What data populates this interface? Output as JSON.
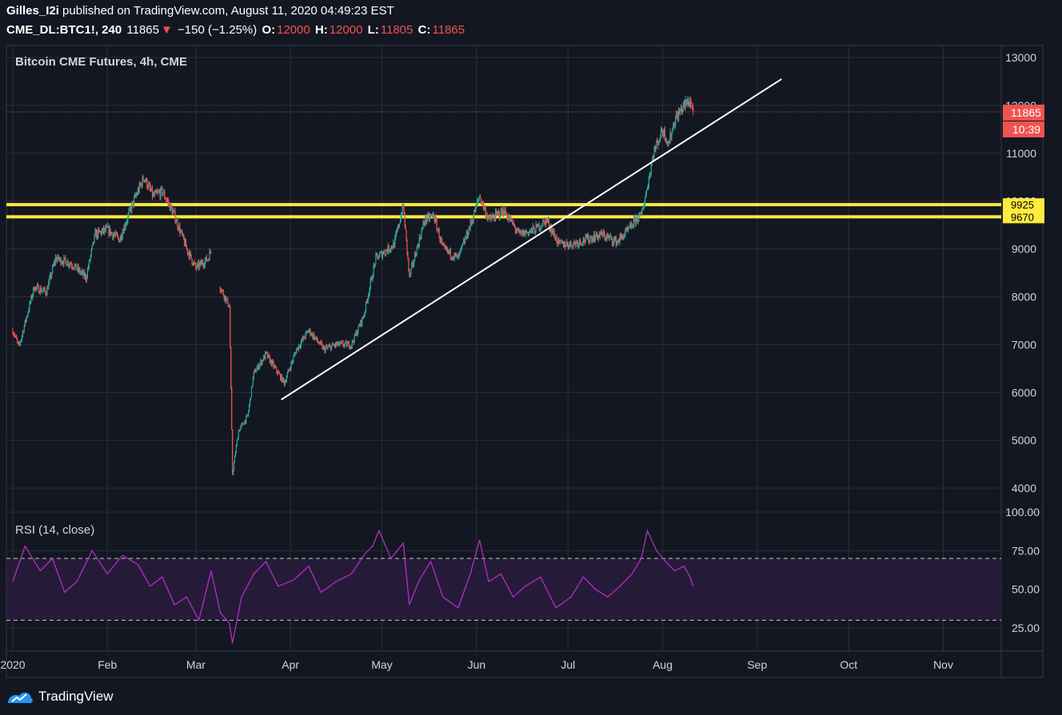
{
  "header": {
    "author": "Gilles_I2i",
    "published_text": "published on TradingView.com, August 11, 2020 04:49:23 EST",
    "symbol": "CME_DL:BTC1!, 240",
    "last": "11865",
    "change": "−150 (−1.25%)",
    "o_label": "O:",
    "o_value": "12000",
    "h_label": "H:",
    "h_value": "12000",
    "l_label": "L:",
    "l_value": "11805",
    "c_label": "C:",
    "c_value": "11865"
  },
  "footer": {
    "brand": "TradingView"
  },
  "colors": {
    "background": "#131722",
    "grid": "#2a2e39",
    "up": "#26a69a",
    "down": "#ef5350",
    "level": "#ffeb3b",
    "trendline": "#ffffff",
    "rsi": "#b02fc2",
    "rsi_band": "#2a1b3d"
  },
  "chart_data": [
    {
      "type": "candlestick",
      "title": "Bitcoin CME Futures, 4h, CME",
      "x_ticks": [
        "2020",
        "Feb",
        "Mar",
        "Apr",
        "May",
        "Jun",
        "Jul",
        "Aug",
        "Sep",
        "Oct",
        "Nov"
      ],
      "x_range": [
        "2020-01-01",
        "2020-11-20"
      ],
      "y_ticks": [
        "13000",
        "12000",
        "11000",
        "10000",
        "9000",
        "8000",
        "7000",
        "6000",
        "5000",
        "4000"
      ],
      "ylim": [
        3500,
        13250
      ],
      "grid": true,
      "last_price": {
        "value": 11865,
        "label": "11865",
        "countdown": "10:39"
      },
      "levels": [
        {
          "value": 9925,
          "label": "9925"
        },
        {
          "value": 9670,
          "label": "9670"
        }
      ],
      "trendline": {
        "from": [
          "2020-03-29",
          5850
        ],
        "to": [
          "2020-09-09",
          12550
        ]
      },
      "price_path": [
        [
          "2020-01-01",
          7300
        ],
        [
          "2020-01-03",
          6950
        ],
        [
          "2020-01-08",
          8200
        ],
        [
          "2020-01-12",
          8100
        ],
        [
          "2020-01-15",
          8800
        ],
        [
          "2020-01-20",
          8700
        ],
        [
          "2020-01-25",
          8400
        ],
        [
          "2020-01-28",
          9300
        ],
        [
          "2020-02-01",
          9400
        ],
        [
          "2020-02-05",
          9200
        ],
        [
          "2020-02-09",
          9900
        ],
        [
          "2020-02-13",
          10500
        ],
        [
          "2020-02-16",
          10100
        ],
        [
          "2020-02-19",
          10200
        ],
        [
          "2020-02-23",
          9700
        ],
        [
          "2020-02-27",
          9000
        ],
        [
          "2020-03-01",
          8600
        ],
        [
          "2020-03-05",
          8800
        ],
        [
          "2020-03-07",
          9200
        ],
        [
          "2020-03-09",
          8200
        ],
        [
          "2020-03-12",
          7800
        ],
        [
          "2020-03-13",
          4300
        ],
        [
          "2020-03-15",
          5200
        ],
        [
          "2020-03-18",
          5500
        ],
        [
          "2020-03-20",
          6400
        ],
        [
          "2020-03-24",
          6800
        ],
        [
          "2020-03-27",
          6500
        ],
        [
          "2020-03-30",
          6200
        ],
        [
          "2020-04-03",
          6900
        ],
        [
          "2020-04-07",
          7300
        ],
        [
          "2020-04-12",
          6900
        ],
        [
          "2020-04-16",
          7000
        ],
        [
          "2020-04-21",
          7000
        ],
        [
          "2020-04-25",
          7600
        ],
        [
          "2020-04-29",
          8800
        ],
        [
          "2020-05-01",
          8900
        ],
        [
          "2020-05-05",
          9100
        ],
        [
          "2020-05-08",
          9900
        ],
        [
          "2020-05-10",
          8400
        ],
        [
          "2020-05-12",
          8900
        ],
        [
          "2020-05-15",
          9600
        ],
        [
          "2020-05-18",
          9700
        ],
        [
          "2020-05-21",
          9000
        ],
        [
          "2020-05-26",
          8800
        ],
        [
          "2020-05-30",
          9500
        ],
        [
          "2020-06-02",
          10100
        ],
        [
          "2020-06-05",
          9600
        ],
        [
          "2020-06-10",
          9800
        ],
        [
          "2020-06-15",
          9300
        ],
        [
          "2020-06-20",
          9400
        ],
        [
          "2020-06-24",
          9600
        ],
        [
          "2020-06-28",
          9100
        ],
        [
          "2020-07-02",
          9100
        ],
        [
          "2020-07-07",
          9200
        ],
        [
          "2020-07-12",
          9300
        ],
        [
          "2020-07-17",
          9150
        ],
        [
          "2020-07-21",
          9400
        ],
        [
          "2020-07-23",
          9600
        ],
        [
          "2020-07-25",
          9700
        ],
        [
          "2020-07-27",
          10300
        ],
        [
          "2020-07-29",
          11000
        ],
        [
          "2020-08-01",
          11500
        ],
        [
          "2020-08-03",
          11200
        ],
        [
          "2020-08-05",
          11700
        ],
        [
          "2020-08-08",
          12000
        ],
        [
          "2020-08-10",
          12100
        ],
        [
          "2020-08-11",
          11865
        ]
      ]
    },
    {
      "type": "line",
      "title": "RSI (14, close)",
      "y_ticks": [
        "100.00",
        "75.00",
        "50.00",
        "25.00"
      ],
      "ylim": [
        10,
        100
      ],
      "bands": [
        70,
        30
      ],
      "series": [
        {
          "points": [
            [
              "2020-01-01",
              55
            ],
            [
              "2020-01-05",
              78
            ],
            [
              "2020-01-10",
              62
            ],
            [
              "2020-01-14",
              70
            ],
            [
              "2020-01-18",
              48
            ],
            [
              "2020-01-22",
              55
            ],
            [
              "2020-01-27",
              75
            ],
            [
              "2020-02-01",
              60
            ],
            [
              "2020-02-06",
              72
            ],
            [
              "2020-02-11",
              66
            ],
            [
              "2020-02-15",
              52
            ],
            [
              "2020-02-19",
              58
            ],
            [
              "2020-02-23",
              40
            ],
            [
              "2020-02-27",
              45
            ],
            [
              "2020-03-02",
              30
            ],
            [
              "2020-03-06",
              62
            ],
            [
              "2020-03-09",
              35
            ],
            [
              "2020-03-12",
              28
            ],
            [
              "2020-03-13",
              15
            ],
            [
              "2020-03-16",
              45
            ],
            [
              "2020-03-20",
              60
            ],
            [
              "2020-03-24",
              68
            ],
            [
              "2020-03-28",
              52
            ],
            [
              "2020-04-02",
              56
            ],
            [
              "2020-04-07",
              65
            ],
            [
              "2020-04-11",
              48
            ],
            [
              "2020-04-16",
              55
            ],
            [
              "2020-04-21",
              60
            ],
            [
              "2020-04-25",
              72
            ],
            [
              "2020-04-28",
              78
            ],
            [
              "2020-04-30",
              88
            ],
            [
              "2020-05-04",
              70
            ],
            [
              "2020-05-08",
              80
            ],
            [
              "2020-05-10",
              40
            ],
            [
              "2020-05-13",
              55
            ],
            [
              "2020-05-17",
              68
            ],
            [
              "2020-05-21",
              45
            ],
            [
              "2020-05-26",
              38
            ],
            [
              "2020-05-30",
              60
            ],
            [
              "2020-06-02",
              82
            ],
            [
              "2020-06-05",
              55
            ],
            [
              "2020-06-09",
              60
            ],
            [
              "2020-06-13",
              45
            ],
            [
              "2020-06-17",
              52
            ],
            [
              "2020-06-22",
              58
            ],
            [
              "2020-06-27",
              38
            ],
            [
              "2020-07-02",
              45
            ],
            [
              "2020-07-06",
              58
            ],
            [
              "2020-07-10",
              50
            ],
            [
              "2020-07-14",
              45
            ],
            [
              "2020-07-18",
              52
            ],
            [
              "2020-07-22",
              60
            ],
            [
              "2020-07-25",
              70
            ],
            [
              "2020-07-27",
              88
            ],
            [
              "2020-07-30",
              75
            ],
            [
              "2020-08-02",
              68
            ],
            [
              "2020-08-05",
              62
            ],
            [
              "2020-08-08",
              65
            ],
            [
              "2020-08-10",
              58
            ],
            [
              "2020-08-11",
              52
            ]
          ]
        }
      ]
    }
  ]
}
